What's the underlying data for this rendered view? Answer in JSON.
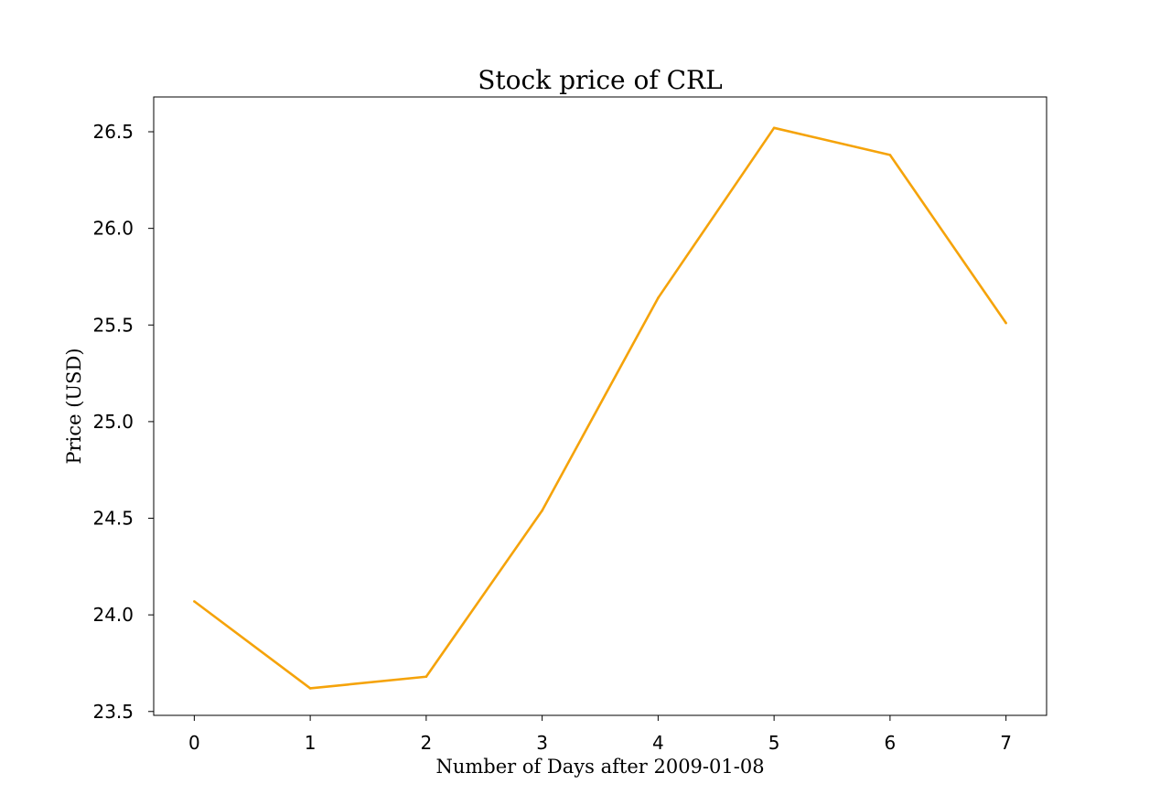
{
  "chart_data": {
    "type": "line",
    "title": "Stock price of CRL",
    "xlabel": "Number of Days after 2009-01-08",
    "ylabel": "Price (USD)",
    "x": [
      0,
      1,
      2,
      3,
      4,
      5,
      6,
      7
    ],
    "series": [
      {
        "values": [
          24.07,
          23.62,
          23.68,
          24.54,
          25.64,
          26.52,
          26.38,
          25.51
        ],
        "color": "#f5a30a"
      }
    ],
    "xticks": [
      "0",
      "1",
      "2",
      "3",
      "4",
      "5",
      "6",
      "7"
    ],
    "yticks": [
      "23.5",
      "24.0",
      "24.5",
      "25.0",
      "25.5",
      "26.0",
      "26.5"
    ],
    "xlim": [
      -0.35,
      7.35
    ],
    "ylim": [
      23.48,
      26.68
    ],
    "grid": false,
    "legend": "none"
  }
}
